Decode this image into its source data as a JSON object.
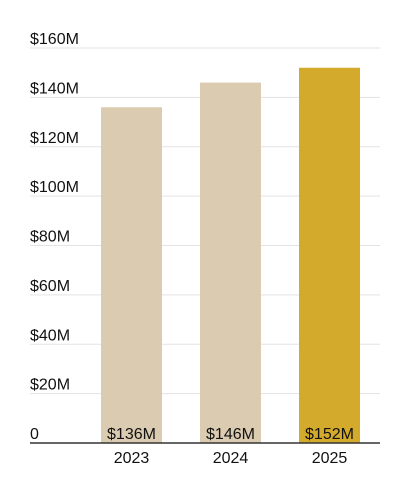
{
  "chart_data": {
    "type": "bar",
    "categories": [
      "2023",
      "2024",
      "2025"
    ],
    "values": [
      136,
      146,
      152
    ],
    "data_labels": [
      "$136M",
      "$146M",
      "$152M"
    ],
    "title": "",
    "xlabel": "",
    "ylabel": "",
    "ylim": [
      0,
      160
    ],
    "yticks": [
      0,
      20,
      40,
      60,
      80,
      100,
      120,
      140,
      160
    ],
    "ytick_labels": [
      "0",
      "$20M",
      "$40M",
      "$60M",
      "$80M",
      "$100M",
      "$120M",
      "$140M",
      "$160M"
    ],
    "grid": true,
    "legend": "none",
    "colors": {
      "default_bar": "#dbcbb0",
      "highlight_bar": "#d4aa2d",
      "grid": "#e3e3e3",
      "axis": "#333333"
    },
    "highlight_category": "2025"
  }
}
